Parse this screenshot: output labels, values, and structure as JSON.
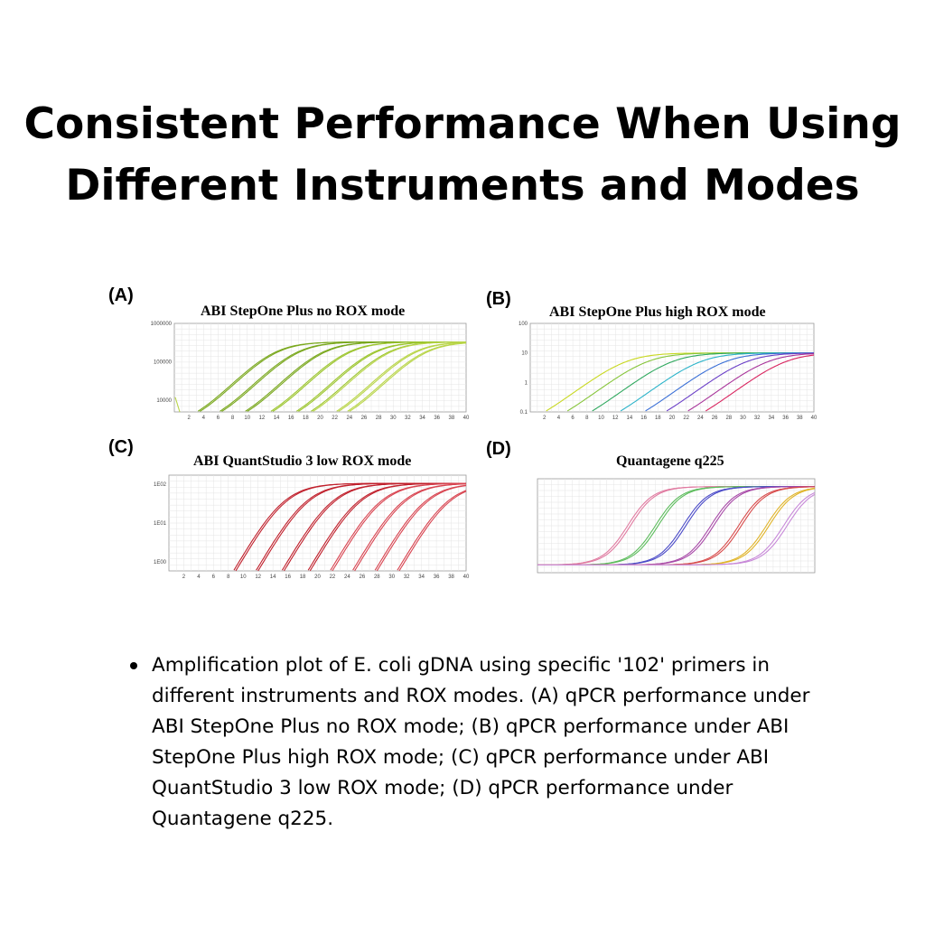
{
  "title_line1": "Consistent Performance When Using",
  "title_line2": "Different Instruments and Modes",
  "bullet": "Amplification plot of E. coli gDNA using specific '102' primers in different instruments and ROX modes. (A) qPCR performance under ABI StepOne Plus no ROX mode; (B) qPCR performance under ABI StepOne Plus high ROX mode; (C) qPCR performance under ABI QuantStudio 3 low ROX mode; (D) qPCR performance under Quantagene q225.",
  "chart_data": [
    {
      "panel": "(A)",
      "type": "line",
      "title": "ABI StepOne Plus no ROX mode",
      "xlabel": "",
      "ylabel": "",
      "y_scale": "log",
      "xlim": [
        0,
        40
      ],
      "ylim": [
        5000,
        1000000
      ],
      "x_ticks": [
        "2",
        "4",
        "6",
        "8",
        "10",
        "12",
        "14",
        "16",
        "18",
        "20",
        "22",
        "24",
        "26",
        "28",
        "30",
        "32",
        "34",
        "36",
        "38",
        "40"
      ],
      "y_ticks": [
        "1000000",
        "100000",
        "10000"
      ],
      "grid": true,
      "colors": [
        "#7aa81e",
        "#9cc52e",
        "#b9d54a"
      ],
      "curve_model": {
        "baseline": 2000,
        "plateau": 330000,
        "slope": 0.45
      },
      "series_midpoints": [
        13.5,
        13.8,
        16.5,
        16.8,
        20,
        20.3,
        23.5,
        23.8,
        27,
        27.3,
        29,
        29.3,
        32.5,
        32.8,
        34,
        34.3
      ]
    },
    {
      "panel": "(B)",
      "type": "line",
      "title": "ABI StepOne Plus high ROX mode",
      "xlabel": "",
      "ylabel": "",
      "y_scale": "log",
      "xlim": [
        0,
        40
      ],
      "ylim": [
        0.1,
        100
      ],
      "x_ticks": [
        "2",
        "4",
        "6",
        "8",
        "10",
        "12",
        "14",
        "16",
        "18",
        "20",
        "22",
        "24",
        "26",
        "28",
        "30",
        "32",
        "34",
        "36",
        "38",
        "40"
      ],
      "y_ticks": [
        "100",
        "10",
        "1",
        "0.1"
      ],
      "grid": true,
      "colors": [
        "#c8d820",
        "#86c53a",
        "#2fa85e",
        "#2bb3c9",
        "#3a6fd6",
        "#6a3fc7",
        "#a8349a",
        "#d9245f"
      ],
      "curve_model": {
        "baseline": 0.02,
        "plateau": 10,
        "slope": 0.42
      },
      "series_midpoints": [
        13.5,
        16.5,
        20,
        24,
        27.5,
        30.5,
        33.5,
        36
      ]
    },
    {
      "panel": "(C)",
      "type": "line",
      "title": "ABI QuantStudio 3  low ROX mode",
      "xlabel": "",
      "ylabel": "",
      "y_scale": "log",
      "xlim": [
        0,
        40
      ],
      "ylim": [
        0.6,
        13
      ],
      "x_ticks": [
        "2",
        "4",
        "6",
        "8",
        "10",
        "12",
        "14",
        "16",
        "18",
        "20",
        "22",
        "24",
        "26",
        "28",
        "30",
        "32",
        "34",
        "36",
        "38",
        "40"
      ],
      "y_ticks": [
        "1E02",
        "1E01",
        "1E00"
      ],
      "grid": true,
      "colors": [
        "#c0202c",
        "#d84450"
      ],
      "curve_model": {
        "baseline": 0.05,
        "plateau": 10,
        "slope": 0.45
      },
      "series_midpoints": [
        15,
        15.3,
        18,
        18.3,
        21.5,
        21.8,
        25,
        25.3,
        28,
        28.3,
        31,
        31.3,
        34,
        34.3,
        37,
        37.3
      ]
    },
    {
      "panel": "(D)",
      "type": "line",
      "title": "Quantagene q225",
      "xlabel": "",
      "ylabel": "",
      "y_scale": "linear",
      "xlim": [
        0,
        40
      ],
      "ylim": [
        -0.1,
        1.1
      ],
      "grid": true,
      "colors": [
        "#e07aa0",
        "#5cbc5c",
        "#4b4bc8",
        "#a84aa8",
        "#d84b4b",
        "#e0b428",
        "#c788d8"
      ],
      "curve_model": {
        "baseline": 0,
        "plateau": 1,
        "slope": 0.55
      },
      "series_midpoints": [
        13,
        13.4,
        17,
        17.4,
        21,
        21.4,
        25,
        25.4,
        29,
        29.4,
        33,
        33.4,
        35.5,
        36
      ]
    }
  ]
}
